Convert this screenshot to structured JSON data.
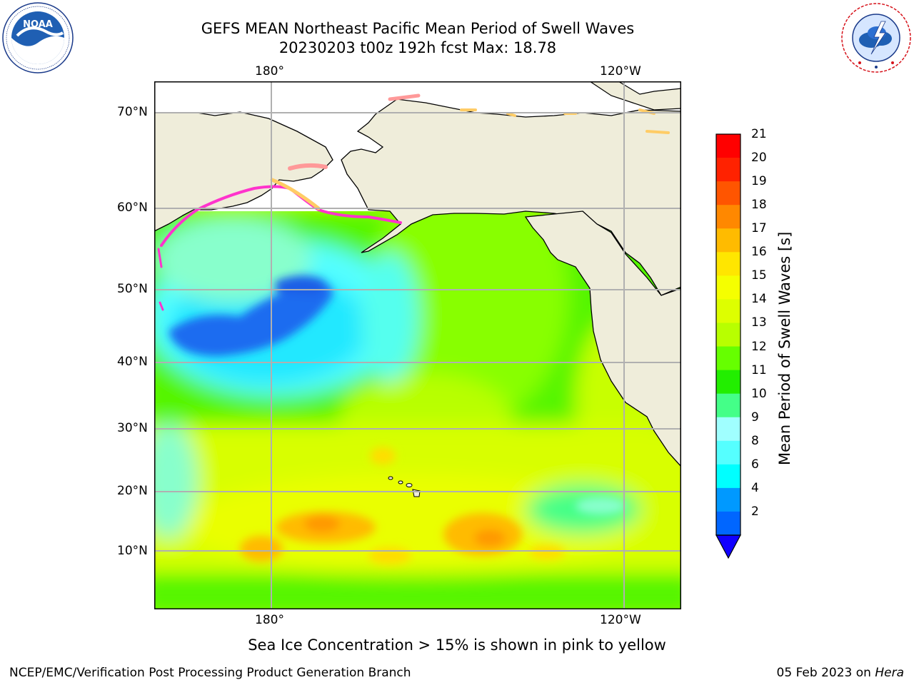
{
  "header": {
    "title_line1": "GEFS MEAN Northeast Pacific Mean Period of Swell Waves",
    "title_line2": "20230203 t00z 192h fcst   Max: 18.78"
  },
  "logos": {
    "noaa": {
      "text": "NOAA",
      "ring_text": "NATIONAL OCEANIC AND ATMOSPHERIC ADMINISTRATION · U.S. DEPARTMENT OF COMMERCE"
    },
    "nws": {
      "ring_text": "NATIONAL WEATHER SERVICE"
    }
  },
  "map": {
    "lon_top": [
      "180°",
      "120°W"
    ],
    "lon_bottom": [
      "180°",
      "120°W"
    ],
    "lat_labels": [
      "70°N",
      "60°N",
      "50°N",
      "40°N",
      "30°N",
      "20°N",
      "10°N"
    ],
    "land_color": "#efedda",
    "ocean_missing_color": "#ffffff",
    "ice_colors": [
      "#ff33cc",
      "#ff9999",
      "#ffcc66",
      "#ffff66"
    ],
    "grid": true
  },
  "colorbar": {
    "title": "Mean Period of Swell Waves [s]",
    "ticks": [
      "21",
      "20",
      "19",
      "18",
      "17",
      "16",
      "15",
      "14",
      "13",
      "12",
      "11",
      "10",
      "9",
      "8",
      "6",
      "4",
      "2"
    ],
    "colors": [
      "#ff0000",
      "#ff2200",
      "#ff5500",
      "#ff8800",
      "#ffbb00",
      "#ffe600",
      "#f5ff00",
      "#ddff00",
      "#b8ff00",
      "#66ff00",
      "#22ee00",
      "#44ff88",
      "#a0ffff",
      "#55ffff",
      "#00ffff",
      "#0099ff",
      "#0066ff"
    ],
    "extend_color": "#1100ff"
  },
  "caption": "Sea Ice Concentration > 15% is shown in pink to yellow",
  "footer": {
    "left": "NCEP/EMC/Verification Post Processing Product Generation Branch",
    "date": "05 Feb 2023 on ",
    "host": "Hera"
  }
}
